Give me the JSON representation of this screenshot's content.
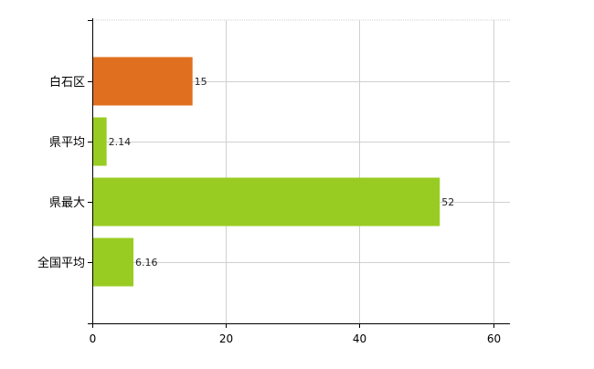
{
  "chart_data": {
    "type": "bar",
    "orientation": "horizontal",
    "title": "",
    "xlabel": "",
    "ylabel": "",
    "categories": [
      "白石区",
      "県平均",
      "県最大",
      "全国平均"
    ],
    "values": [
      15,
      2.14,
      52,
      6.16
    ],
    "value_labels": [
      "15",
      "2.14",
      "52",
      "6.16"
    ],
    "bar_colors": [
      "#e07020",
      "#99cc22",
      "#99cc22",
      "#99cc22"
    ],
    "xlim": [
      0,
      62.5
    ],
    "xticks": [
      0,
      20,
      40,
      60
    ],
    "xtick_labels": [
      "0",
      "20",
      "40",
      "60"
    ],
    "grid": true,
    "grid_color": "#d0d0d0",
    "axis_color": "#000000"
  }
}
